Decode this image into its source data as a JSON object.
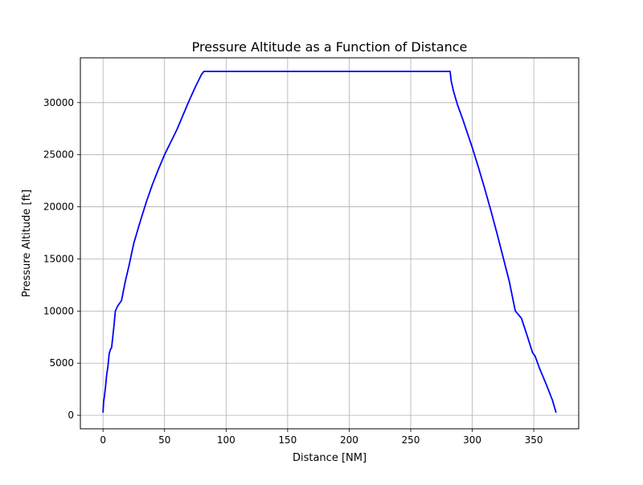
{
  "chart_data": {
    "type": "line",
    "title": "Pressure Altitude as a Function of Distance",
    "xlabel": "Distance [NM]",
    "ylabel": "Pressure Altitude [ft]",
    "xlim": [
      -18.4,
      386.5
    ],
    "ylim": [
      -1300,
      34300
    ],
    "x_ticks": [
      0,
      50,
      100,
      150,
      200,
      250,
      300,
      350
    ],
    "y_ticks": [
      0,
      5000,
      10000,
      15000,
      20000,
      25000,
      30000
    ],
    "grid": true,
    "series": [
      {
        "color": "#0000ff",
        "x": [
          0,
          0.5,
          1,
          2,
          3,
          4,
          5,
          6,
          7,
          8,
          9,
          10,
          12,
          15,
          18,
          21,
          25,
          30,
          35,
          40,
          45,
          50,
          55,
          60,
          65,
          70,
          75,
          80,
          82,
          100,
          150,
          200,
          250,
          282,
          283,
          285,
          288,
          292,
          296,
          300,
          305,
          310,
          315,
          320,
          325,
          330,
          335,
          340,
          345,
          349,
          351,
          355,
          360,
          365,
          368
        ],
        "y": [
          300,
          1300,
          1700,
          2700,
          3900,
          4700,
          5900,
          6300,
          6500,
          7600,
          8700,
          10000,
          10500,
          11000,
          12800,
          14300,
          16500,
          18500,
          20400,
          22100,
          23600,
          25000,
          26200,
          27400,
          28800,
          30200,
          31500,
          32700,
          33000,
          33000,
          33000,
          33000,
          33000,
          33000,
          32000,
          31000,
          29800,
          28500,
          27100,
          25700,
          23800,
          21800,
          19700,
          17500,
          15200,
          12900,
          10000,
          9300,
          7500,
          6000,
          5700,
          4400,
          3000,
          1500,
          300
        ]
      }
    ]
  }
}
